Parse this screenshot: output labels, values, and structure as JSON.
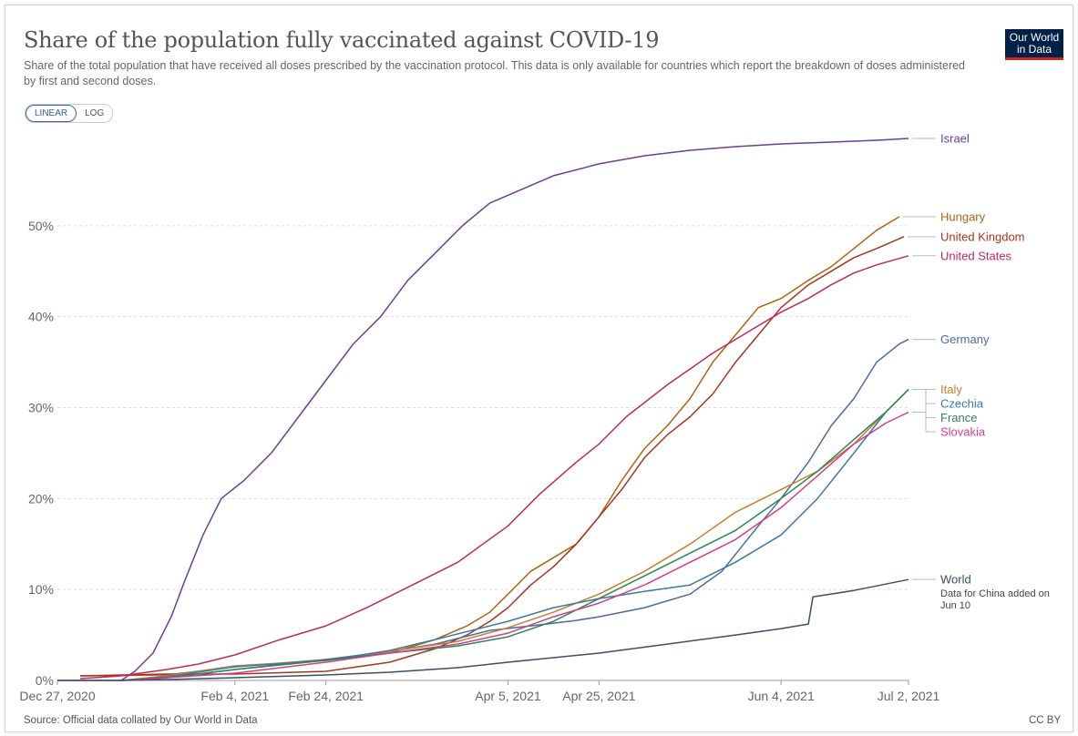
{
  "header": {
    "title": "Share of the population fully vaccinated against COVID-19",
    "subtitle": "Share of the total population that have received all doses prescribed by the vaccination protocol. This data is only available for countries which report the breakdown of doses administered by first and second doses."
  },
  "logo": {
    "line1": "Our World",
    "line2": "in Data"
  },
  "controls": {
    "linear_label": "LINEAR",
    "log_label": "LOG",
    "active": "LINEAR"
  },
  "footer": {
    "source": "Source: Official data collated by Our World in Data",
    "license": "CC BY"
  },
  "colors": {
    "grid": "#dddddd",
    "axis": "#999999"
  },
  "chart_data": {
    "type": "line",
    "title": "Share of the population fully vaccinated against COVID-19",
    "xlabel": "",
    "ylabel": "",
    "ylim": [
      0,
      60
    ],
    "y_ticks": [
      0,
      10,
      20,
      30,
      40,
      50
    ],
    "y_tick_labels": [
      "0%",
      "10%",
      "20%",
      "30%",
      "40%",
      "50%"
    ],
    "x_range": [
      "2020-12-27",
      "2021-07-02"
    ],
    "x_ticks": [
      "2020-12-27",
      "2021-02-04",
      "2021-02-24",
      "2021-04-05",
      "2021-04-25",
      "2021-06-04",
      "2021-07-02"
    ],
    "x_tick_labels": [
      "Dec 27, 2020",
      "Feb 4, 2021",
      "Feb 24, 2021",
      "Apr 5, 2021",
      "Apr 25, 2021",
      "Jun 4, 2021",
      "Jul 2, 2021"
    ],
    "grid": "horizontal dashed",
    "legend": "line labels at right end",
    "annotation": {
      "series": "World",
      "text": [
        "Data for China added on",
        "Jun 10"
      ]
    },
    "series": [
      {
        "name": "Israel",
        "color": "#6d3e91",
        "points": [
          [
            "2020-12-27",
            0
          ],
          [
            "2021-01-10",
            0
          ],
          [
            "2021-01-13",
            1
          ],
          [
            "2021-01-17",
            3
          ],
          [
            "2021-01-21",
            7
          ],
          [
            "2021-01-24",
            11
          ],
          [
            "2021-01-28",
            16
          ],
          [
            "2021-02-01",
            20
          ],
          [
            "2021-02-06",
            22
          ],
          [
            "2021-02-12",
            25
          ],
          [
            "2021-02-18",
            29
          ],
          [
            "2021-02-24",
            33
          ],
          [
            "2021-03-02",
            37
          ],
          [
            "2021-03-08",
            40
          ],
          [
            "2021-03-14",
            44
          ],
          [
            "2021-03-20",
            47
          ],
          [
            "2021-03-26",
            50
          ],
          [
            "2021-04-01",
            52.5
          ],
          [
            "2021-04-08",
            54
          ],
          [
            "2021-04-15",
            55.5
          ],
          [
            "2021-04-25",
            56.8
          ],
          [
            "2021-05-05",
            57.7
          ],
          [
            "2021-05-15",
            58.3
          ],
          [
            "2021-05-25",
            58.7
          ],
          [
            "2021-06-04",
            59
          ],
          [
            "2021-06-15",
            59.2
          ],
          [
            "2021-06-25",
            59.4
          ],
          [
            "2021-07-02",
            59.6
          ]
        ]
      },
      {
        "name": "Hungary",
        "color": "#b16214",
        "points": [
          [
            "2021-01-01",
            0.5
          ],
          [
            "2021-01-20",
            0.6
          ],
          [
            "2021-02-04",
            1.5
          ],
          [
            "2021-02-24",
            2.3
          ],
          [
            "2021-03-10",
            3
          ],
          [
            "2021-03-20",
            4.5
          ],
          [
            "2021-03-27",
            6
          ],
          [
            "2021-04-01",
            7.5
          ],
          [
            "2021-04-05",
            9.5
          ],
          [
            "2021-04-10",
            12
          ],
          [
            "2021-04-15",
            13.5
          ],
          [
            "2021-04-20",
            15
          ],
          [
            "2021-04-25",
            18
          ],
          [
            "2021-04-30",
            22
          ],
          [
            "2021-05-05",
            25.5
          ],
          [
            "2021-05-10",
            28
          ],
          [
            "2021-05-15",
            31
          ],
          [
            "2021-05-20",
            35
          ],
          [
            "2021-05-25",
            38
          ],
          [
            "2021-05-30",
            41
          ],
          [
            "2021-06-04",
            42
          ],
          [
            "2021-06-10",
            44
          ],
          [
            "2021-06-15",
            45.5
          ],
          [
            "2021-06-20",
            47.5
          ],
          [
            "2021-06-25",
            49.5
          ],
          [
            "2021-06-30",
            51
          ]
        ]
      },
      {
        "name": "United Kingdom",
        "color": "#a2371f",
        "points": [
          [
            "2021-01-01",
            0.5
          ],
          [
            "2021-01-20",
            0.7
          ],
          [
            "2021-02-04",
            0.7
          ],
          [
            "2021-02-24",
            1
          ],
          [
            "2021-03-10",
            2
          ],
          [
            "2021-03-20",
            3.5
          ],
          [
            "2021-03-27",
            5
          ],
          [
            "2021-04-01",
            6.5
          ],
          [
            "2021-04-05",
            8
          ],
          [
            "2021-04-10",
            10.5
          ],
          [
            "2021-04-15",
            12.5
          ],
          [
            "2021-04-20",
            15
          ],
          [
            "2021-04-25",
            18
          ],
          [
            "2021-04-30",
            21
          ],
          [
            "2021-05-05",
            24.5
          ],
          [
            "2021-05-10",
            27
          ],
          [
            "2021-05-15",
            29
          ],
          [
            "2021-05-20",
            31.5
          ],
          [
            "2021-05-25",
            35
          ],
          [
            "2021-05-30",
            38
          ],
          [
            "2021-06-04",
            41
          ],
          [
            "2021-06-10",
            43.5
          ],
          [
            "2021-06-15",
            45
          ],
          [
            "2021-06-20",
            46.5
          ],
          [
            "2021-06-25",
            47.5
          ],
          [
            "2021-07-01",
            48.8
          ]
        ]
      },
      {
        "name": "United States",
        "color": "#be2a5e",
        "points": [
          [
            "2021-01-01",
            0.2
          ],
          [
            "2021-01-10",
            0.5
          ],
          [
            "2021-01-20",
            1.2
          ],
          [
            "2021-01-27",
            1.8
          ],
          [
            "2021-02-04",
            2.8
          ],
          [
            "2021-02-14",
            4.5
          ],
          [
            "2021-02-24",
            6
          ],
          [
            "2021-03-05",
            8
          ],
          [
            "2021-03-15",
            10.5
          ],
          [
            "2021-03-25",
            13
          ],
          [
            "2021-04-05",
            17
          ],
          [
            "2021-04-12",
            20.5
          ],
          [
            "2021-04-20",
            24
          ],
          [
            "2021-04-25",
            26
          ],
          [
            "2021-05-01",
            29
          ],
          [
            "2021-05-10",
            32.5
          ],
          [
            "2021-05-20",
            36
          ],
          [
            "2021-05-30",
            39
          ],
          [
            "2021-06-04",
            40.5
          ],
          [
            "2021-06-10",
            42
          ],
          [
            "2021-06-15",
            43.5
          ],
          [
            "2021-06-20",
            44.8
          ],
          [
            "2021-06-25",
            45.7
          ],
          [
            "2021-07-02",
            46.7
          ]
        ]
      },
      {
        "name": "Germany",
        "color": "#4c6a9c",
        "points": [
          [
            "2021-01-10",
            0
          ],
          [
            "2021-01-20",
            0.3
          ],
          [
            "2021-02-04",
            1.2
          ],
          [
            "2021-02-24",
            2.3
          ],
          [
            "2021-03-10",
            3.2
          ],
          [
            "2021-03-20",
            4
          ],
          [
            "2021-04-01",
            5.5
          ],
          [
            "2021-04-10",
            6
          ],
          [
            "2021-04-20",
            6.6
          ],
          [
            "2021-04-25",
            7
          ],
          [
            "2021-05-05",
            8
          ],
          [
            "2021-05-15",
            9.5
          ],
          [
            "2021-05-22",
            12
          ],
          [
            "2021-05-30",
            17
          ],
          [
            "2021-06-04",
            20
          ],
          [
            "2021-06-10",
            24
          ],
          [
            "2021-06-15",
            28
          ],
          [
            "2021-06-20",
            31
          ],
          [
            "2021-06-25",
            35
          ],
          [
            "2021-06-30",
            37
          ],
          [
            "2021-07-02",
            37.5
          ]
        ]
      },
      {
        "name": "Italy",
        "color": "#c57f2f",
        "points": [
          [
            "2021-01-10",
            0
          ],
          [
            "2021-01-20",
            0.5
          ],
          [
            "2021-02-04",
            1.6
          ],
          [
            "2021-02-24",
            2.2
          ],
          [
            "2021-03-10",
            3.2
          ],
          [
            "2021-03-25",
            4.3
          ],
          [
            "2021-04-05",
            5.8
          ],
          [
            "2021-04-15",
            7.5
          ],
          [
            "2021-04-25",
            9.5
          ],
          [
            "2021-05-05",
            12
          ],
          [
            "2021-05-15",
            15
          ],
          [
            "2021-05-25",
            18.5
          ],
          [
            "2021-06-04",
            21
          ],
          [
            "2021-06-12",
            23
          ],
          [
            "2021-06-20",
            26
          ],
          [
            "2021-06-27",
            29.5
          ],
          [
            "2021-07-02",
            32
          ]
        ]
      },
      {
        "name": "Czechia",
        "color": "#3b79a5",
        "points": [
          [
            "2021-01-10",
            0
          ],
          [
            "2021-01-20",
            0.4
          ],
          [
            "2021-02-04",
            1.5
          ],
          [
            "2021-02-24",
            2.2
          ],
          [
            "2021-03-10",
            3.3
          ],
          [
            "2021-03-20",
            4.5
          ],
          [
            "2021-04-05",
            6.5
          ],
          [
            "2021-04-15",
            8
          ],
          [
            "2021-04-25",
            9
          ],
          [
            "2021-05-05",
            9.8
          ],
          [
            "2021-05-15",
            10.5
          ],
          [
            "2021-05-25",
            13
          ],
          [
            "2021-06-04",
            16
          ],
          [
            "2021-06-12",
            20
          ],
          [
            "2021-06-20",
            25
          ],
          [
            "2021-06-27",
            29.5
          ],
          [
            "2021-07-02",
            32
          ]
        ]
      },
      {
        "name": "France",
        "color": "#2d8653",
        "points": [
          [
            "2021-01-10",
            0
          ],
          [
            "2021-01-20",
            0.3
          ],
          [
            "2021-02-04",
            1.2
          ],
          [
            "2021-02-24",
            2.2
          ],
          [
            "2021-03-10",
            3
          ],
          [
            "2021-03-25",
            3.8
          ],
          [
            "2021-04-05",
            4.8
          ],
          [
            "2021-04-15",
            6.5
          ],
          [
            "2021-04-25",
            9
          ],
          [
            "2021-05-05",
            11.5
          ],
          [
            "2021-05-15",
            14
          ],
          [
            "2021-05-25",
            16.5
          ],
          [
            "2021-06-04",
            20
          ],
          [
            "2021-06-12",
            23
          ],
          [
            "2021-06-20",
            26.5
          ],
          [
            "2021-06-27",
            29.5
          ],
          [
            "2021-07-02",
            32
          ]
        ]
      },
      {
        "name": "Slovakia",
        "color": "#d13f8b",
        "points": [
          [
            "2021-01-10",
            0
          ],
          [
            "2021-01-20",
            0.3
          ],
          [
            "2021-02-04",
            0.8
          ],
          [
            "2021-02-24",
            2
          ],
          [
            "2021-03-10",
            3
          ],
          [
            "2021-03-25",
            4
          ],
          [
            "2021-04-05",
            5.2
          ],
          [
            "2021-04-15",
            7
          ],
          [
            "2021-04-25",
            8.5
          ],
          [
            "2021-05-05",
            10.5
          ],
          [
            "2021-05-15",
            13
          ],
          [
            "2021-05-25",
            15.5
          ],
          [
            "2021-06-04",
            19
          ],
          [
            "2021-06-12",
            22.5
          ],
          [
            "2021-06-20",
            26
          ],
          [
            "2021-06-27",
            28.3
          ],
          [
            "2021-07-02",
            29.5
          ]
        ]
      },
      {
        "name": "World",
        "color": "#3c4e66",
        "points": [
          [
            "2020-12-27",
            0
          ],
          [
            "2021-01-10",
            0
          ],
          [
            "2021-01-20",
            0.1
          ],
          [
            "2021-02-04",
            0.3
          ],
          [
            "2021-02-24",
            0.6
          ],
          [
            "2021-03-10",
            0.9
          ],
          [
            "2021-03-25",
            1.4
          ],
          [
            "2021-04-05",
            2
          ],
          [
            "2021-04-25",
            3
          ],
          [
            "2021-05-10",
            4
          ],
          [
            "2021-05-25",
            5
          ],
          [
            "2021-06-04",
            5.7
          ],
          [
            "2021-06-10",
            6.2
          ],
          [
            "2021-06-11",
            9.2
          ],
          [
            "2021-06-20",
            9.9
          ],
          [
            "2021-07-02",
            11.1
          ]
        ]
      }
    ]
  }
}
